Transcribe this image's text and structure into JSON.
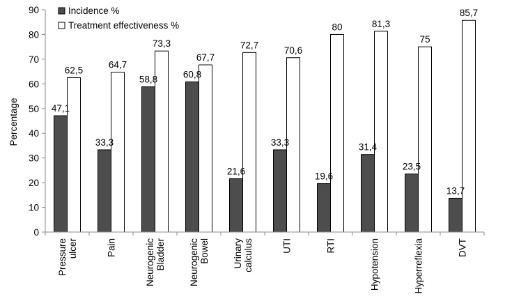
{
  "chart_data": {
    "type": "bar",
    "title": "",
    "xlabel": "",
    "ylabel": "Percentage",
    "ylim": [
      0,
      90
    ],
    "ytick_step": 10,
    "grid": false,
    "legend_position": "top-left",
    "categories": [
      [
        "Pressure",
        "ulcer"
      ],
      [
        "Pain"
      ],
      [
        "Neurogenic",
        "Bladder"
      ],
      [
        "Neurogenic",
        "Bowel"
      ],
      [
        "Urinary",
        "calculus"
      ],
      [
        "UTI"
      ],
      [
        "RTI"
      ],
      [
        "Hypotension"
      ],
      [
        "Hyperreflexia"
      ],
      [
        "DVT"
      ]
    ],
    "series": [
      {
        "name": "Incidence %",
        "color": "#4d4d4d",
        "values": [
          47.1,
          33.3,
          58.8,
          60.8,
          21.6,
          33.3,
          19.6,
          31.4,
          23.5,
          13.7
        ],
        "labels": [
          "47,1",
          "33,3",
          "58,8",
          "60,8",
          "21,6",
          "33,3",
          "19,6",
          "31,4",
          "23,5",
          "13,7"
        ]
      },
      {
        "name": "Treatment effectiveness %",
        "color": "#ffffff",
        "values": [
          62.5,
          64.7,
          73.3,
          67.7,
          72.7,
          70.6,
          80,
          81.3,
          75,
          85.7
        ],
        "labels": [
          "62,5",
          "64,7",
          "73,3",
          "67,7",
          "72,7",
          "70,6",
          "80",
          "81,3",
          "75",
          "85,7"
        ]
      }
    ]
  }
}
